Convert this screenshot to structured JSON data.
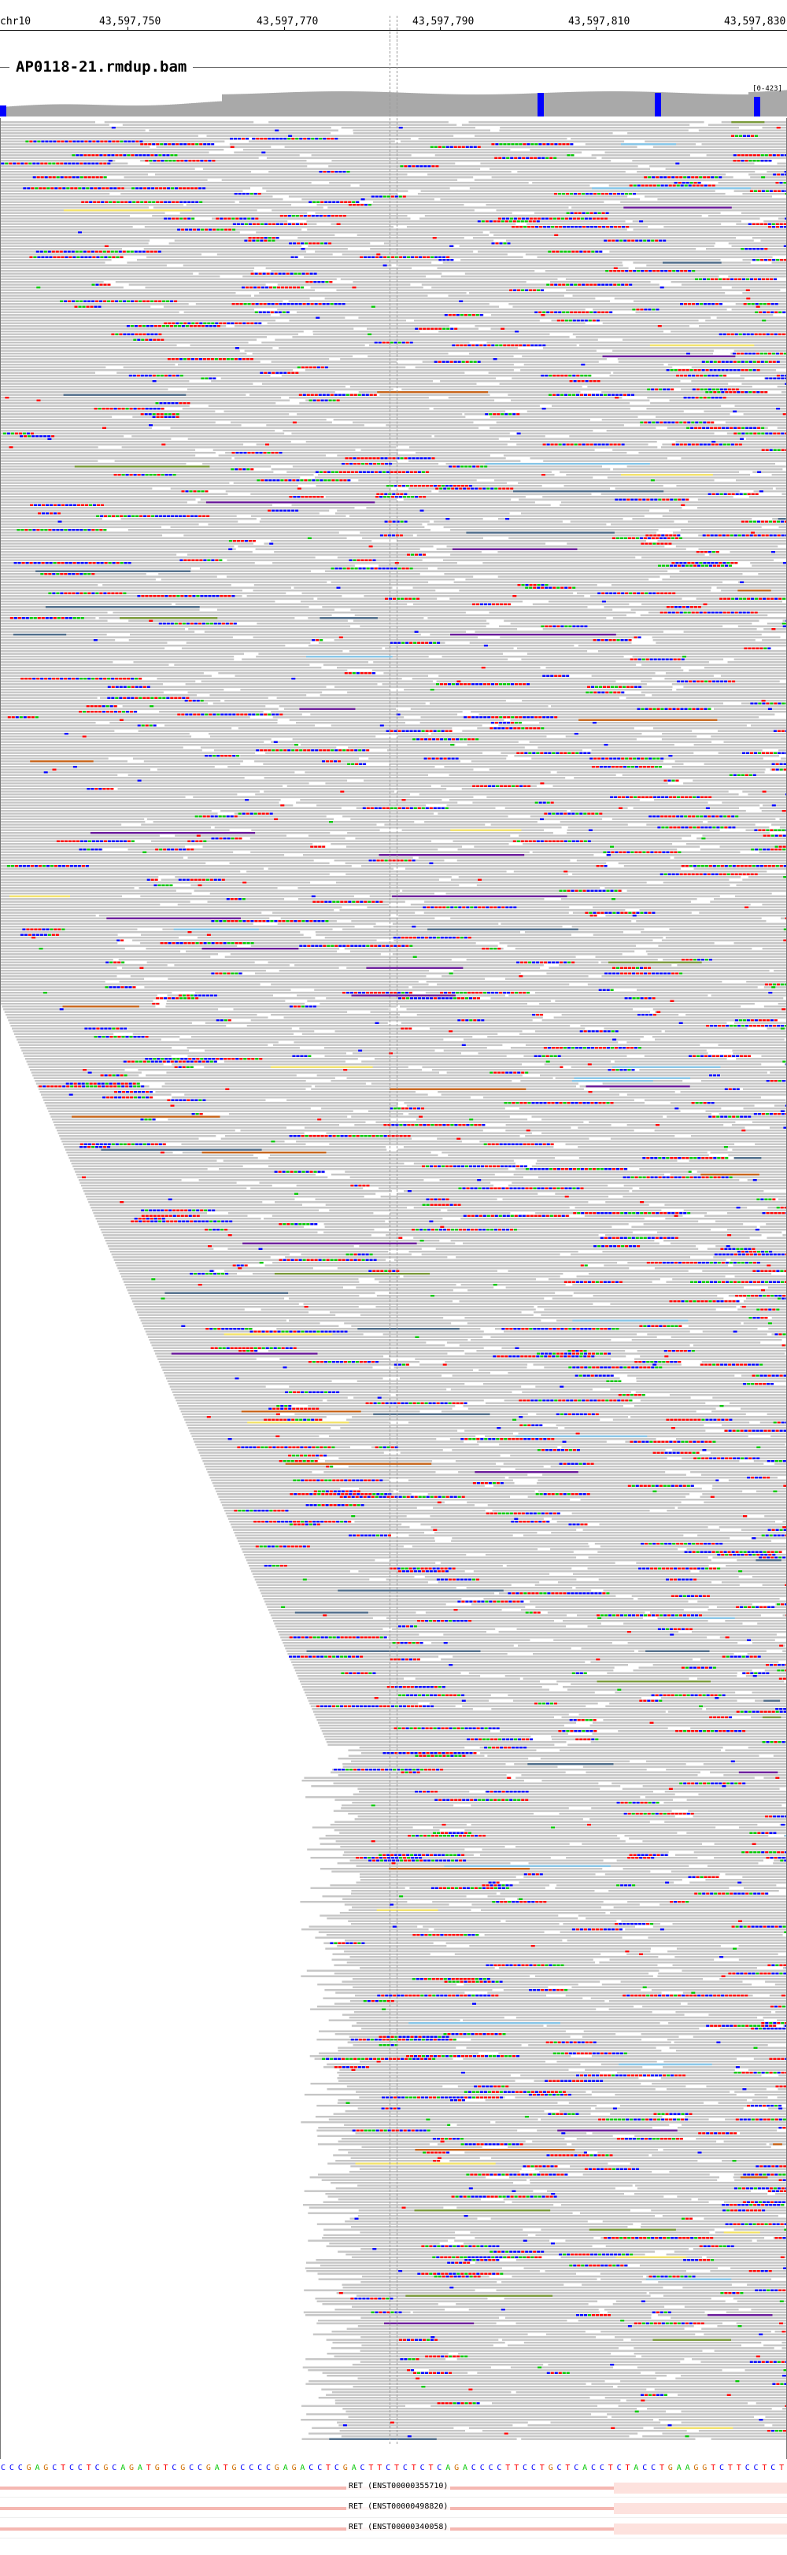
{
  "ruler": {
    "chromosome": "chr10",
    "ticks": [
      "43,597,750",
      "43,597,770",
      "43,597,790",
      "43,597,810",
      "43,597,830"
    ]
  },
  "track": {
    "title": "AP0118-21.rmdup.bam",
    "coverage_range": "[0-423]"
  },
  "colors": {
    "read": "#c6c6c6",
    "coverage": "#a9a9a9",
    "A": "#00c800",
    "C": "#0000ff",
    "G": "#d17105",
    "T": "#ff0000",
    "insert_purple": "#6a1b9a",
    "insert_orange": "#c8651b",
    "insert_yellow": "#f3e36b",
    "insert_steel": "#4f6d8a",
    "insert_olive": "#7a9a3a",
    "insert_lightblue": "#87c6e8",
    "gene": "#f5b7b1"
  },
  "sequence": "CCCGAGCTCCTCGCAGATGTCGCCGATGCCCCGAGACCTCGACTTCTCTCTCAGACCCCTTCCTGCTCACCTCTACCTGAAGGTCTTCCTCT",
  "genes": [
    {
      "label": "RET (ENST00000355710)"
    },
    {
      "label": "RET (ENST00000498820)"
    },
    {
      "label": "RET (ENST00000340058)"
    }
  ]
}
